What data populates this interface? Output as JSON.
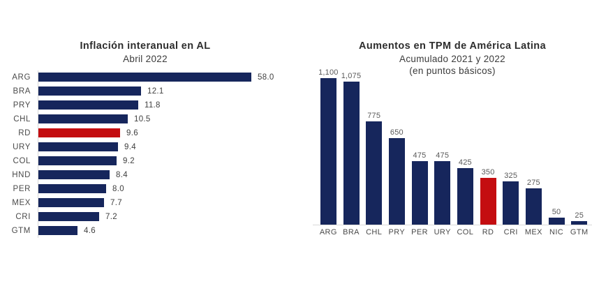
{
  "page": {
    "background_color": "#ffffff",
    "accent_navy": "#16265c",
    "accent_red": "#c40d10",
    "axis_color": "#d9d9d9"
  },
  "chart_data": [
    {
      "type": "bar",
      "orientation": "horizontal",
      "title": "Inflación interanual en AL",
      "subtitle": "Abril 2022",
      "categories": [
        "ARG",
        "BRA",
        "PRY",
        "CHL",
        "RD",
        "URY",
        "COL",
        "HND",
        "PER",
        "MEX",
        "CRI",
        "GTM"
      ],
      "values": [
        58.0,
        12.1,
        11.8,
        10.5,
        9.6,
        9.4,
        9.2,
        8.4,
        8.0,
        7.7,
        7.2,
        4.6
      ],
      "value_labels": [
        "58.0",
        "12.1",
        "11.8",
        "10.5",
        "9.6",
        "9.4",
        "9.2",
        "8.4",
        "8.0",
        "7.7",
        "7.2",
        "4.6"
      ],
      "highlight_category": "RD",
      "bar_color": "#16265c",
      "highlight_color": "#c40d10",
      "layout": {
        "value_labels_position": "right-of-bar",
        "left_axis_line": true,
        "grid": false,
        "legend": false,
        "note": "ARG bar is drawn visually clipped, shorter than its proportional length"
      }
    },
    {
      "type": "bar",
      "orientation": "vertical",
      "title": "Aumentos en TPM de América Latina",
      "subtitle": "Acumulado 2021 y 2022",
      "subtitle2": "(en puntos básicos)",
      "categories": [
        "ARG",
        "BRA",
        "CHL",
        "PRY",
        "PER",
        "URY",
        "COL",
        "RD",
        "CRI",
        "MEX",
        "NIC",
        "GTM"
      ],
      "values": [
        1100,
        1075,
        775,
        650,
        475,
        475,
        425,
        350,
        325,
        275,
        50,
        25
      ],
      "value_labels": [
        "1,100",
        "1,075",
        "775",
        "650",
        "475",
        "475",
        "425",
        "350",
        "325",
        "275",
        "50",
        "25"
      ],
      "highlight_category": "RD",
      "bar_color": "#16265c",
      "highlight_color": "#c40d10",
      "layout": {
        "value_labels_position": "above-bar",
        "bottom_axis_line": true,
        "grid": false,
        "legend": false,
        "ylim": [
          0,
          1100
        ]
      }
    }
  ]
}
